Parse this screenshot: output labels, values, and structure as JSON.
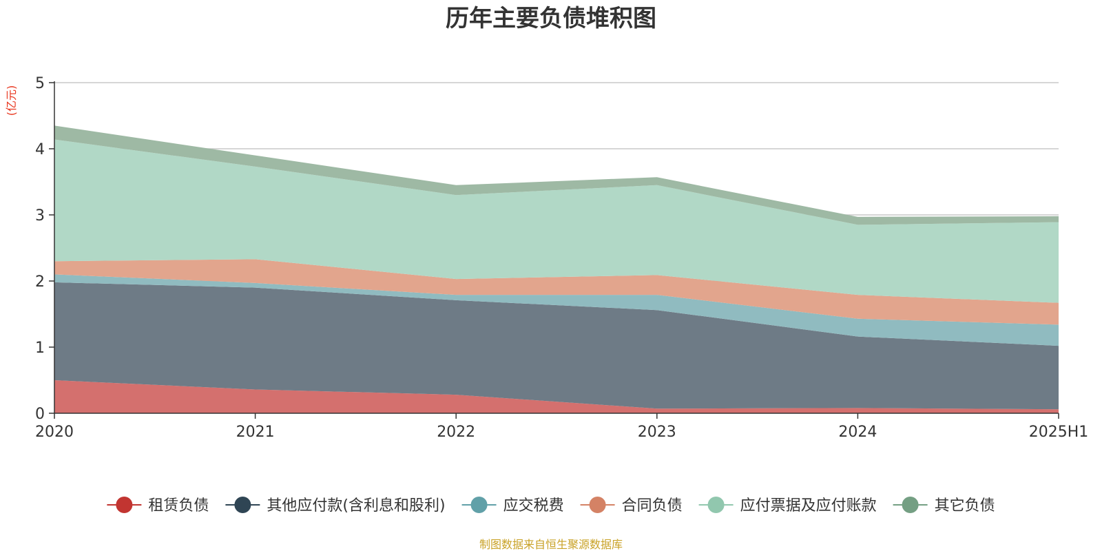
{
  "chart_data": {
    "type": "area",
    "stacked": true,
    "title": "历年主要负债堆积图",
    "unit_label": "(亿元)",
    "source_note": "制图数据来自恒生聚源数据库",
    "categories": [
      "2020",
      "2021",
      "2022",
      "2023",
      "2024",
      "2025H1"
    ],
    "ylim": [
      0,
      5
    ],
    "yticks": [
      "0",
      "1",
      "2",
      "3",
      "4",
      "5"
    ],
    "grid": true,
    "legend_position": "bottom",
    "series": [
      {
        "name": "租赁负债",
        "color": "#c23531",
        "fill": "#d4706e",
        "values": [
          0.5,
          0.36,
          0.28,
          0.07,
          0.08,
          0.06
        ]
      },
      {
        "name": "其他应付款(含利息和股利)",
        "color": "#2f4554",
        "fill": "#6e7b86",
        "values": [
          1.48,
          1.54,
          1.43,
          1.49,
          1.08,
          0.96
        ]
      },
      {
        "name": "应交税费",
        "color": "#61a0a8",
        "fill": "#90bbc0",
        "values": [
          0.12,
          0.07,
          0.08,
          0.23,
          0.27,
          0.32
        ]
      },
      {
        "name": "合同负债",
        "color": "#d48265",
        "fill": "#e2a58d",
        "values": [
          0.2,
          0.36,
          0.24,
          0.3,
          0.36,
          0.33
        ]
      },
      {
        "name": "应付票据及应付账款",
        "color": "#91c7ae",
        "fill": "#b1d8c6",
        "values": [
          1.84,
          1.4,
          1.27,
          1.36,
          1.06,
          1.22
        ]
      },
      {
        "name": "其它负债",
        "color": "#749f83",
        "fill": "#9eb9a4",
        "values": [
          0.21,
          0.17,
          0.15,
          0.12,
          0.12,
          0.09
        ]
      }
    ]
  }
}
